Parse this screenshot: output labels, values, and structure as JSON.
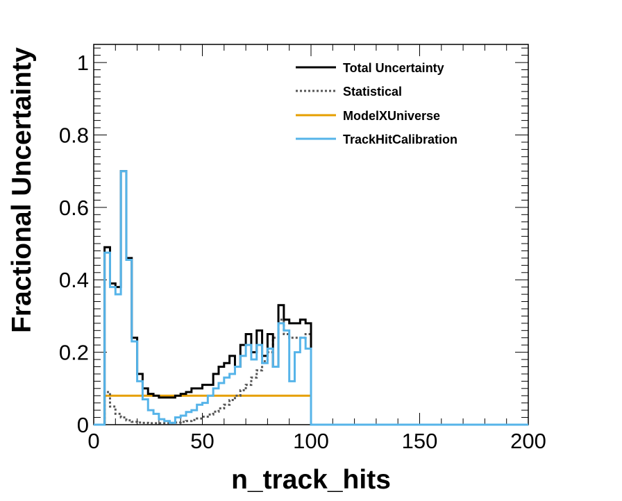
{
  "chart_data": {
    "type": "line",
    "xlabel": "n_track_hits",
    "ylabel": "Fractional Uncertainty",
    "xlim": [
      0,
      200
    ],
    "ylim": [
      0,
      1.05
    ],
    "x_ticks": [
      0,
      50,
      100,
      150,
      200
    ],
    "y_ticks": [
      0,
      0.2,
      0.4,
      0.6,
      0.8,
      1
    ],
    "x_tick_labels": [
      "0",
      "50",
      "100",
      "150",
      "200"
    ],
    "y_tick_labels": [
      "0",
      "0.2",
      "0.4",
      "0.6",
      "0.8",
      "1"
    ],
    "grid": false,
    "legend_position": "top-right",
    "bin_edges": [
      0,
      2.5,
      5,
      7.5,
      10,
      12.5,
      15,
      17.5,
      20,
      22.5,
      25,
      27.5,
      30,
      32.5,
      35,
      37.5,
      40,
      42.5,
      45,
      47.5,
      50,
      52.5,
      55,
      57.5,
      60,
      62.5,
      65,
      67.5,
      70,
      72.5,
      75,
      77.5,
      80,
      82.5,
      85,
      87.5,
      90,
      92.5,
      95,
      97.5,
      100,
      200
    ],
    "series": [
      {
        "name": "Total Uncertainty",
        "color": "#000000",
        "dash": "solid",
        "values": [
          0,
          0,
          0.49,
          0.39,
          0.38,
          0.7,
          0.46,
          0.24,
          0.14,
          0.1,
          0.085,
          0.08,
          0.075,
          0.075,
          0.075,
          0.08,
          0.085,
          0.09,
          0.1,
          0.1,
          0.11,
          0.11,
          0.14,
          0.16,
          0.17,
          0.19,
          0.16,
          0.22,
          0.25,
          0.2,
          0.26,
          0.19,
          0.25,
          0.16,
          0.33,
          0.29,
          0.28,
          0.28,
          0.29,
          0.28,
          0,
          0
        ]
      },
      {
        "name": "Statistical",
        "color": "#555555",
        "dash": "dotted",
        "values": [
          0,
          0,
          0.09,
          0.05,
          0.03,
          0.02,
          0.012,
          0.008,
          0.006,
          0.005,
          0.004,
          0.004,
          0.004,
          0.004,
          0.005,
          0.006,
          0.008,
          0.01,
          0.013,
          0.017,
          0.022,
          0.028,
          0.036,
          0.045,
          0.055,
          0.068,
          0.08,
          0.095,
          0.11,
          0.13,
          0.15,
          0.175,
          0.2,
          0.24,
          0.29,
          0.25,
          0.24,
          0.24,
          0.24,
          0.25,
          0,
          0
        ]
      },
      {
        "name": "ModelXUniverse",
        "color": "#E69F00",
        "dash": "solid",
        "values": [
          0,
          0,
          0.08,
          0.08,
          0.08,
          0.08,
          0.08,
          0.08,
          0.08,
          0.08,
          0.08,
          0.08,
          0.08,
          0.08,
          0.08,
          0.08,
          0.08,
          0.08,
          0.08,
          0.08,
          0.08,
          0.08,
          0.08,
          0.08,
          0.08,
          0.08,
          0.08,
          0.08,
          0.08,
          0.08,
          0.08,
          0.08,
          0.08,
          0.08,
          0.08,
          0.08,
          0.08,
          0.08,
          0.08,
          0.08,
          0,
          0
        ]
      },
      {
        "name": "TrackHitCalibration",
        "color": "#56B4E9",
        "dash": "solid",
        "values": [
          0,
          0,
          0.475,
          0.38,
          0.36,
          0.7,
          0.455,
          0.23,
          0.12,
          0.07,
          0.04,
          0.03,
          0.015,
          0.01,
          0.005,
          0.02,
          0.025,
          0.035,
          0.04,
          0.055,
          0.06,
          0.08,
          0.1,
          0.115,
          0.13,
          0.14,
          0.16,
          0.19,
          0.22,
          0.18,
          0.22,
          0.17,
          0.21,
          0.16,
          0.28,
          0.26,
          0.12,
          0.2,
          0.24,
          0.21,
          0,
          0
        ]
      }
    ]
  }
}
